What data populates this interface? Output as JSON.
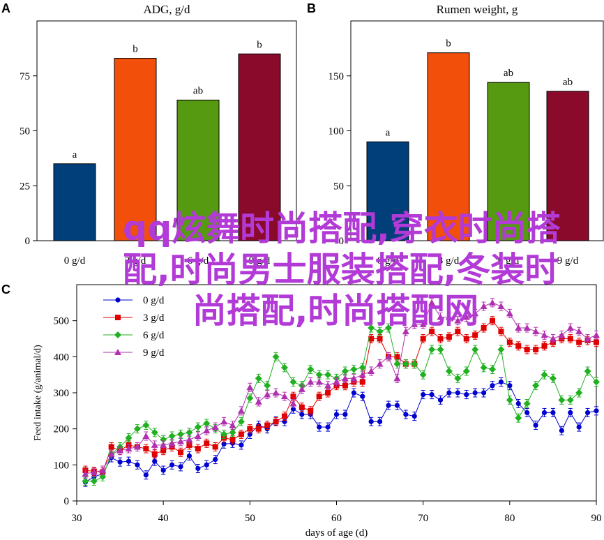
{
  "figure": {
    "panels": [
      {
        "letter": "A",
        "title": "ADG, g/d"
      },
      {
        "letter": "B",
        "title": "Rumen weight, g"
      },
      {
        "letter": "C",
        "title": ""
      }
    ]
  },
  "colors": {
    "bar_0": "#003f7a",
    "bar_3": "#f2500a",
    "bar_6": "#559a10",
    "bar_9": "#8a0a2c",
    "line_0": "#0000d0",
    "line_3": "#e00000",
    "line_6": "#20b020",
    "line_9": "#b030b0",
    "watermark": "#b23ad6"
  },
  "chart_data": [
    {
      "type": "bar",
      "title": "ADG, g/d",
      "categories": [
        "0 g/d",
        "3 g/d",
        "6 g/d",
        "9 g/d"
      ],
      "values": [
        35,
        83,
        64,
        85
      ],
      "significance": [
        "a",
        "b",
        "ab",
        "b"
      ],
      "ylim": [
        0,
        100
      ],
      "yticks": [
        0,
        25,
        50,
        75
      ],
      "xlabel": "",
      "ylabel": ""
    },
    {
      "type": "bar",
      "title": "Rumen weight, g",
      "categories": [
        "0 g/d",
        "3 g/d",
        "6 g/d",
        "9 g/d"
      ],
      "values": [
        90,
        171,
        144,
        136
      ],
      "significance": [
        "a",
        "b",
        "ab",
        "ab"
      ],
      "ylim": [
        0,
        200
      ],
      "yticks": [
        0,
        50,
        100,
        150
      ],
      "xlabel": "",
      "ylabel": ""
    },
    {
      "type": "line",
      "xlabel": "days of age (d)",
      "ylabel": "Feed intake (g/animal/d)",
      "xlim": [
        30,
        90
      ],
      "ylim": [
        0,
        600
      ],
      "xticks": [
        30,
        40,
        50,
        60,
        70,
        80,
        90
      ],
      "yticks": [
        0,
        100,
        200,
        300,
        400,
        500
      ],
      "legend_position": "top-left",
      "x": [
        31,
        32,
        33,
        34,
        35,
        36,
        37,
        38,
        39,
        40,
        41,
        42,
        43,
        44,
        45,
        46,
        47,
        48,
        49,
        50,
        51,
        52,
        53,
        54,
        55,
        56,
        57,
        58,
        59,
        60,
        61,
        62,
        63,
        64,
        65,
        66,
        67,
        68,
        69,
        70,
        71,
        72,
        73,
        74,
        75,
        76,
        77,
        78,
        79,
        80,
        81,
        82,
        83,
        84,
        85,
        86,
        87,
        88,
        89,
        90
      ],
      "series": [
        {
          "name": "0 g/d",
          "values": [
            52,
            67,
            75,
            120,
            108,
            110,
            100,
            72,
            110,
            85,
            100,
            95,
            125,
            90,
            100,
            115,
            158,
            160,
            155,
            185,
            210,
            200,
            222,
            220,
            255,
            240,
            240,
            205,
            205,
            240,
            240,
            300,
            290,
            220,
            220,
            265,
            265,
            240,
            235,
            295,
            295,
            280,
            300,
            300,
            295,
            300,
            300,
            320,
            330,
            320,
            270,
            245,
            210,
            245,
            245,
            195,
            245,
            205,
            245,
            250
          ]
        },
        {
          "name": "3 g/d",
          "values": [
            85,
            82,
            80,
            150,
            140,
            155,
            150,
            145,
            130,
            140,
            150,
            135,
            155,
            145,
            160,
            150,
            175,
            170,
            185,
            200,
            200,
            210,
            220,
            235,
            290,
            260,
            250,
            290,
            300,
            320,
            320,
            330,
            330,
            450,
            450,
            400,
            400,
            380,
            380,
            450,
            470,
            450,
            455,
            470,
            450,
            460,
            480,
            500,
            470,
            440,
            430,
            420,
            420,
            430,
            440,
            450,
            450,
            440,
            445,
            440
          ]
        },
        {
          "name": "6 g/d",
          "values": [
            55,
            55,
            67,
            130,
            150,
            175,
            200,
            210,
            190,
            170,
            180,
            185,
            190,
            205,
            215,
            200,
            185,
            190,
            220,
            285,
            340,
            320,
            400,
            370,
            330,
            320,
            365,
            350,
            350,
            340,
            360,
            365,
            370,
            480,
            470,
            480,
            380,
            380,
            380,
            350,
            420,
            420,
            360,
            340,
            360,
            420,
            370,
            365,
            420,
            280,
            230,
            270,
            320,
            350,
            340,
            280,
            280,
            300,
            360,
            330
          ]
        },
        {
          "name": "9 g/d",
          "values": [
            75,
            80,
            85,
            130,
            140,
            145,
            150,
            180,
            155,
            155,
            160,
            165,
            170,
            180,
            195,
            205,
            220,
            210,
            250,
            315,
            275,
            295,
            300,
            290,
            270,
            310,
            330,
            330,
            320,
            330,
            340,
            340,
            350,
            360,
            380,
            400,
            340,
            470,
            490,
            490,
            550,
            510,
            510,
            500,
            510,
            520,
            540,
            550,
            540,
            520,
            480,
            480,
            470,
            460,
            450,
            460,
            480,
            470,
            450,
            460
          ]
        }
      ]
    }
  ],
  "watermark": {
    "lines": [
      "qq炫舞时尚搭配,穿衣时尚搭",
      "配,时尚男士服装搭配,冬装时",
      "尚搭配,时尚搭配网"
    ]
  }
}
